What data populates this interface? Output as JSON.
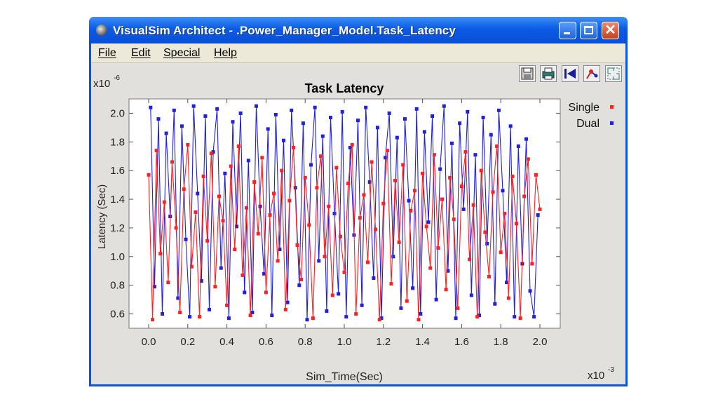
{
  "window": {
    "title": "VisualSim Architect - .Power_Manager_Model.Task_Latency"
  },
  "menu": {
    "items": [
      "File",
      "Edit",
      "Special",
      "Help"
    ]
  },
  "toolbar": {
    "icons": [
      "save-icon",
      "print-icon",
      "reset-axes-icon",
      "format-icon",
      "fill-icon"
    ]
  },
  "chart_data": {
    "type": "scatter",
    "title": "Task Latency",
    "xlabel": "Sim_Time(Sec)",
    "ylabel": "Latency (Sec)",
    "x_exponent_label": "x10",
    "x_exponent": "-3",
    "y_exponent_label": "x10",
    "y_exponent": "-6",
    "xlim": [
      0.0,
      2.0
    ],
    "ylim": [
      0.5,
      2.1
    ],
    "xticks": [
      "0.0",
      "0.2",
      "0.4",
      "0.6",
      "0.8",
      "1.0",
      "1.2",
      "1.4",
      "1.6",
      "1.8",
      "2.0"
    ],
    "yticks": [
      "0.6",
      "0.8",
      "1.0",
      "1.2",
      "1.4",
      "1.6",
      "1.8",
      "2.0"
    ],
    "connected": true,
    "grid": false,
    "legend_position": "right",
    "series": [
      {
        "name": "Single",
        "color": "#ff2020",
        "x": [
          0.0,
          0.02,
          0.04,
          0.06,
          0.08,
          0.1,
          0.12,
          0.14,
          0.16,
          0.18,
          0.2,
          0.22,
          0.24,
          0.26,
          0.28,
          0.3,
          0.32,
          0.34,
          0.36,
          0.38,
          0.4,
          0.42,
          0.44,
          0.46,
          0.48,
          0.5,
          0.52,
          0.54,
          0.56,
          0.58,
          0.6,
          0.62,
          0.64,
          0.66,
          0.68,
          0.7,
          0.72,
          0.74,
          0.76,
          0.78,
          0.8,
          0.82,
          0.84,
          0.86,
          0.88,
          0.9,
          0.92,
          0.94,
          0.96,
          0.98,
          1.0,
          1.02,
          1.04,
          1.06,
          1.08,
          1.1,
          1.12,
          1.14,
          1.16,
          1.18,
          1.2,
          1.22,
          1.24,
          1.26,
          1.28,
          1.3,
          1.32,
          1.34,
          1.36,
          1.38,
          1.4,
          1.42,
          1.44,
          1.46,
          1.48,
          1.5,
          1.52,
          1.54,
          1.56,
          1.58,
          1.6,
          1.62,
          1.64,
          1.66,
          1.68,
          1.7,
          1.72,
          1.74,
          1.76,
          1.78,
          1.8,
          1.82,
          1.84,
          1.86,
          1.88,
          1.9,
          1.92,
          1.94,
          1.96,
          1.98,
          2.0
        ],
        "y": [
          1.57,
          0.56,
          1.74,
          1.02,
          1.38,
          0.82,
          1.66,
          1.2,
          0.61,
          1.47,
          1.78,
          0.93,
          1.31,
          0.58,
          1.56,
          1.11,
          1.72,
          0.79,
          1.42,
          1.25,
          0.66,
          1.63,
          1.05,
          1.77,
          0.87,
          1.34,
          0.59,
          1.52,
          1.16,
          1.69,
          0.75,
          1.29,
          1.44,
          0.97,
          1.6,
          0.63,
          1.39,
          1.76,
          1.08,
          0.84,
          1.55,
          1.22,
          0.57,
          1.48,
          1.7,
          1.0,
          1.35,
          0.73,
          1.62,
          1.14,
          0.89,
          1.51,
          1.78,
          0.6,
          1.27,
          1.43,
          0.96,
          1.66,
          1.19,
          0.56,
          1.37,
          1.74,
          0.81,
          1.53,
          1.1,
          1.64,
          0.69,
          1.32,
          1.46,
          0.56,
          1.58,
          1.21,
          0.92,
          1.71,
          1.06,
          1.4,
          0.77,
          1.55,
          1.26,
          0.64,
          1.49,
          1.73,
          0.98,
          1.36,
          0.58,
          1.6,
          1.17,
          0.86,
          1.45,
          1.77,
          1.03,
          1.3,
          0.71,
          1.56,
          1.23,
          0.57,
          1.42,
          1.68,
          0.95,
          1.57,
          1.33
        ]
      },
      {
        "name": "Dual",
        "color": "#2020e0",
        "x": [
          0.01,
          0.03,
          0.05,
          0.07,
          0.09,
          0.11,
          0.13,
          0.15,
          0.17,
          0.19,
          0.21,
          0.23,
          0.25,
          0.27,
          0.29,
          0.31,
          0.33,
          0.35,
          0.37,
          0.39,
          0.41,
          0.43,
          0.45,
          0.47,
          0.49,
          0.51,
          0.53,
          0.55,
          0.57,
          0.59,
          0.61,
          0.63,
          0.65,
          0.67,
          0.69,
          0.71,
          0.73,
          0.75,
          0.77,
          0.79,
          0.81,
          0.83,
          0.85,
          0.87,
          0.89,
          0.91,
          0.93,
          0.95,
          0.97,
          0.99,
          1.01,
          1.03,
          1.05,
          1.07,
          1.09,
          1.11,
          1.13,
          1.15,
          1.17,
          1.19,
          1.21,
          1.23,
          1.25,
          1.27,
          1.29,
          1.31,
          1.33,
          1.35,
          1.37,
          1.39,
          1.41,
          1.43,
          1.45,
          1.47,
          1.49,
          1.51,
          1.53,
          1.55,
          1.57,
          1.59,
          1.61,
          1.63,
          1.65,
          1.67,
          1.69,
          1.71,
          1.73,
          1.75,
          1.77,
          1.79,
          1.81,
          1.83,
          1.85,
          1.87,
          1.89,
          1.91,
          1.93,
          1.95,
          1.97,
          1.99
        ],
        "y": [
          2.04,
          0.79,
          1.96,
          0.6,
          1.86,
          1.28,
          2.02,
          0.71,
          1.91,
          1.12,
          0.58,
          2.05,
          1.44,
          0.83,
          1.98,
          0.63,
          1.73,
          2.03,
          0.92,
          1.58,
          0.57,
          1.94,
          1.21,
          2.0,
          0.75,
          1.67,
          0.61,
          2.05,
          1.35,
          0.88,
          1.89,
          0.59,
          1.99,
          1.05,
          1.81,
          0.68,
          2.02,
          1.48,
          0.8,
          1.93,
          0.56,
          1.64,
          2.04,
          0.97,
          1.84,
          0.62,
          1.97,
          1.3,
          0.74,
          2.01,
          0.58,
          1.76,
          1.15,
          1.95,
          0.66,
          2.04,
          1.52,
          0.85,
          1.9,
          0.57,
          1.69,
          2.0,
          1.0,
          1.83,
          0.64,
          1.96,
          1.39,
          0.78,
          2.03,
          0.6,
          1.87,
          1.24,
          1.98,
          0.7,
          1.61,
          2.05,
          0.9,
          1.79,
          0.57,
          1.93,
          1.33,
          2.01,
          0.73,
          1.71,
          0.59,
          1.97,
          1.09,
          1.85,
          0.67,
          2.02,
          1.46,
          0.82,
          1.91,
          0.58,
          1.77,
          0.95,
          1.82,
          0.76,
          0.58,
          1.29
        ]
      }
    ]
  }
}
